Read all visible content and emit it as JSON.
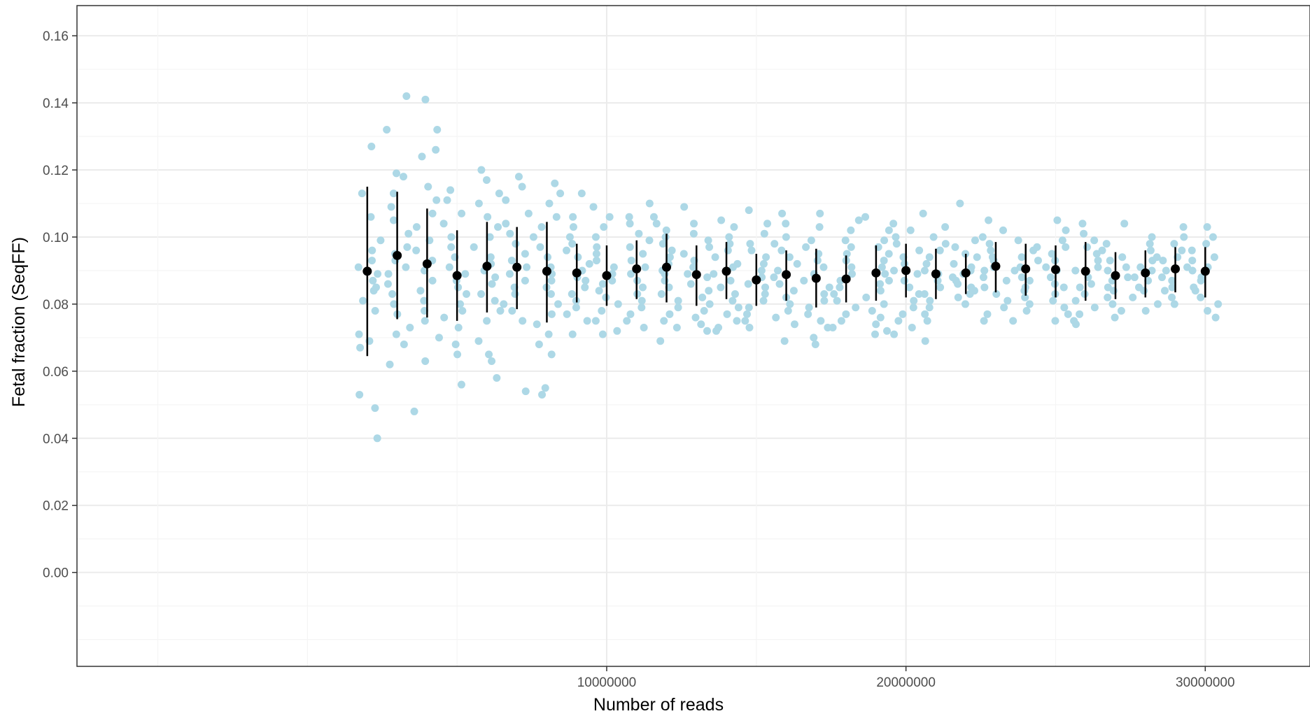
{
  "chart_data": {
    "type": "scatter",
    "title": "",
    "xlabel": "Number of reads",
    "ylabel": "Fetal fraction (SeqFF)",
    "xlim": [
      -7700000,
      33500000
    ],
    "ylim": [
      -0.028,
      0.169
    ],
    "x_ticks": [
      10000000,
      20000000,
      30000000
    ],
    "x_tick_labels": [
      "10000000",
      "20000000",
      "30000000"
    ],
    "y_ticks": [
      0.0,
      0.02,
      0.04,
      0.06,
      0.08,
      0.1,
      0.12,
      0.14,
      0.16
    ],
    "y_tick_labels": [
      "0.00",
      "0.02",
      "0.04",
      "0.06",
      "0.08",
      "0.10",
      "0.12",
      "0.14",
      "0.16"
    ],
    "grid": true,
    "legend": "none",
    "colors": {
      "points": "#add8e6",
      "summary": "#000000",
      "grid_major": "#ebebeb",
      "grid_minor": "#f5f5f5",
      "panel_border": "#333333"
    },
    "series": [
      {
        "type": "jitter-points",
        "x_jitter": 450000,
        "groups": [
          {
            "x": 2000000,
            "ys": [
              0.127,
              0.113,
              0.106,
              0.099,
              0.096,
              0.093,
              0.091,
              0.089,
              0.087,
              0.085,
              0.084,
              0.081,
              0.078,
              0.071,
              0.069,
              0.067,
              0.053,
              0.049,
              0.04
            ]
          },
          {
            "x": 3000000,
            "ys": [
              0.142,
              0.132,
              0.119,
              0.118,
              0.113,
              0.109,
              0.105,
              0.101,
              0.097,
              0.095,
              0.093,
              0.091,
              0.089,
              0.086,
              0.083,
              0.08,
              0.077,
              0.073,
              0.071,
              0.068,
              0.062
            ]
          },
          {
            "x": 4000000,
            "ys": [
              0.141,
              0.132,
              0.126,
              0.124,
              0.115,
              0.111,
              0.107,
              0.103,
              0.099,
              0.096,
              0.093,
              0.09,
              0.087,
              0.084,
              0.081,
              0.078,
              0.075,
              0.07,
              0.063,
              0.048
            ]
          },
          {
            "x": 5000000,
            "ys": [
              0.114,
              0.111,
              0.107,
              0.104,
              0.1,
              0.097,
              0.094,
              0.091,
              0.089,
              0.087,
              0.085,
              0.083,
              0.08,
              0.078,
              0.076,
              0.073,
              0.068,
              0.065,
              0.056
            ]
          },
          {
            "x": 6000000,
            "ys": [
              0.12,
              0.117,
              0.113,
              0.11,
              0.106,
              0.103,
              0.1,
              0.097,
              0.094,
              0.092,
              0.09,
              0.088,
              0.086,
              0.083,
              0.081,
              0.078,
              0.075,
              0.069,
              0.065,
              0.063,
              0.058
            ]
          },
          {
            "x": 7000000,
            "ys": [
              0.118,
              0.115,
              0.111,
              0.107,
              0.104,
              0.101,
              0.098,
              0.095,
              0.093,
              0.091,
              0.089,
              0.087,
              0.085,
              0.083,
              0.08,
              0.078,
              0.075,
              0.054
            ]
          },
          {
            "x": 8000000,
            "ys": [
              0.116,
              0.113,
              0.11,
              0.106,
              0.103,
              0.1,
              0.097,
              0.094,
              0.091,
              0.089,
              0.087,
              0.085,
              0.083,
              0.08,
              0.077,
              0.074,
              0.071,
              0.068,
              0.065,
              0.055,
              0.053
            ]
          },
          {
            "x": 9000000,
            "ys": [
              0.113,
              0.106,
              0.103,
              0.1,
              0.098,
              0.096,
              0.094,
              0.092,
              0.09,
              0.088,
              0.087,
              0.085,
              0.083,
              0.081,
              0.079,
              0.077,
              0.075,
              0.071
            ]
          },
          {
            "x": 10000000,
            "ys": [
              0.109,
              0.106,
              0.103,
              0.1,
              0.097,
              0.095,
              0.093,
              0.091,
              0.089,
              0.087,
              0.086,
              0.084,
              0.082,
              0.08,
              0.078,
              0.075,
              0.072,
              0.071
            ]
          },
          {
            "x": 11000000,
            "ys": [
              0.11,
              0.106,
              0.104,
              0.101,
              0.099,
              0.097,
              0.095,
              0.093,
              0.091,
              0.089,
              0.087,
              0.085,
              0.083,
              0.081,
              0.079,
              0.077,
              0.075,
              0.073
            ]
          },
          {
            "x": 12000000,
            "ys": [
              0.106,
              0.104,
              0.102,
              0.1,
              0.098,
              0.096,
              0.094,
              0.092,
              0.09,
              0.089,
              0.087,
              0.085,
              0.083,
              0.081,
              0.079,
              0.077,
              0.075,
              0.073,
              0.069
            ]
          },
          {
            "x": 13000000,
            "ys": [
              0.109,
              0.104,
              0.101,
              0.099,
              0.097,
              0.095,
              0.093,
              0.091,
              0.089,
              0.088,
              0.086,
              0.084,
              0.082,
              0.08,
              0.078,
              0.076,
              0.074,
              0.072
            ]
          },
          {
            "x": 14000000,
            "ys": [
              0.105,
              0.103,
              0.1,
              0.098,
              0.096,
              0.094,
              0.092,
              0.091,
              0.089,
              0.087,
              0.085,
              0.083,
              0.081,
              0.079,
              0.077,
              0.075,
              0.073,
              0.072
            ]
          },
          {
            "x": 15000000,
            "ys": [
              0.108,
              0.104,
              0.101,
              0.098,
              0.096,
              0.094,
              0.092,
              0.09,
              0.088,
              0.086,
              0.085,
              0.083,
              0.081,
              0.079,
              0.077,
              0.075,
              0.073
            ]
          },
          {
            "x": 16000000,
            "ys": [
              0.107,
              0.104,
              0.1,
              0.098,
              0.096,
              0.094,
              0.092,
              0.09,
              0.088,
              0.086,
              0.084,
              0.082,
              0.08,
              0.078,
              0.076,
              0.074,
              0.069
            ]
          },
          {
            "x": 17000000,
            "ys": [
              0.107,
              0.103,
              0.099,
              0.097,
              0.095,
              0.093,
              0.091,
              0.089,
              0.087,
              0.085,
              0.083,
              0.081,
              0.079,
              0.077,
              0.075,
              0.073,
              0.07,
              0.068
            ]
          },
          {
            "x": 18000000,
            "ys": [
              0.105,
              0.102,
              0.099,
              0.097,
              0.095,
              0.093,
              0.091,
              0.089,
              0.087,
              0.085,
              0.083,
              0.081,
              0.079,
              0.077,
              0.075,
              0.073
            ]
          },
          {
            "x": 19000000,
            "ys": [
              0.106,
              0.102,
              0.099,
              0.097,
              0.095,
              0.093,
              0.091,
              0.089,
              0.087,
              0.086,
              0.084,
              0.082,
              0.08,
              0.078,
              0.076,
              0.074,
              0.072,
              0.071
            ]
          },
          {
            "x": 20000000,
            "ys": [
              0.104,
              0.102,
              0.1,
              0.098,
              0.096,
              0.094,
              0.092,
              0.09,
              0.089,
              0.087,
              0.085,
              0.083,
              0.081,
              0.079,
              0.077,
              0.075,
              0.073,
              0.071
            ]
          },
          {
            "x": 21000000,
            "ys": [
              0.107,
              0.103,
              0.1,
              0.098,
              0.096,
              0.094,
              0.092,
              0.09,
              0.089,
              0.087,
              0.085,
              0.083,
              0.081,
              0.079,
              0.077,
              0.075,
              0.069
            ]
          },
          {
            "x": 22000000,
            "ys": [
              0.11,
              0.099,
              0.097,
              0.095,
              0.094,
              0.092,
              0.091,
              0.09,
              0.089,
              0.088,
              0.087,
              0.086,
              0.085,
              0.084,
              0.083,
              0.082,
              0.08
            ]
          },
          {
            "x": 23000000,
            "ys": [
              0.105,
              0.102,
              0.1,
              0.098,
              0.096,
              0.094,
              0.093,
              0.091,
              0.09,
              0.088,
              0.087,
              0.085,
              0.083,
              0.081,
              0.079,
              0.077,
              0.075
            ]
          },
          {
            "x": 24000000,
            "ys": [
              0.099,
              0.097,
              0.096,
              0.094,
              0.093,
              0.091,
              0.09,
              0.088,
              0.087,
              0.085,
              0.084,
              0.082,
              0.08,
              0.078,
              0.075
            ]
          },
          {
            "x": 25000000,
            "ys": [
              0.105,
              0.102,
              0.099,
              0.097,
              0.095,
              0.093,
              0.091,
              0.09,
              0.088,
              0.086,
              0.085,
              0.083,
              0.081,
              0.079,
              0.077,
              0.075
            ]
          },
          {
            "x": 26000000,
            "ys": [
              0.104,
              0.101,
              0.099,
              0.097,
              0.095,
              0.093,
              0.091,
              0.09,
              0.088,
              0.086,
              0.085,
              0.083,
              0.081,
              0.079,
              0.077,
              0.075,
              0.074
            ]
          },
          {
            "x": 27000000,
            "ys": [
              0.104,
              0.098,
              0.096,
              0.094,
              0.093,
              0.091,
              0.09,
              0.088,
              0.087,
              0.085,
              0.084,
              0.082,
              0.08,
              0.078,
              0.076
            ]
          },
          {
            "x": 28000000,
            "ys": [
              0.1,
              0.098,
              0.096,
              0.094,
              0.093,
              0.091,
              0.09,
              0.088,
              0.087,
              0.085,
              0.084,
              0.082,
              0.08,
              0.078
            ]
          },
          {
            "x": 29000000,
            "ys": [
              0.103,
              0.1,
              0.098,
              0.096,
              0.094,
              0.093,
              0.091,
              0.09,
              0.088,
              0.087,
              0.085,
              0.084,
              0.082,
              0.08
            ]
          },
          {
            "x": 30000000,
            "ys": [
              0.103,
              0.1,
              0.098,
              0.096,
              0.094,
              0.093,
              0.091,
              0.09,
              0.088,
              0.087,
              0.085,
              0.084,
              0.082,
              0.08,
              0.078,
              0.076
            ]
          }
        ]
      },
      {
        "type": "pointrange",
        "x": [
          2000000,
          3000000,
          4000000,
          5000000,
          6000000,
          7000000,
          8000000,
          9000000,
          10000000,
          11000000,
          12000000,
          13000000,
          14000000,
          15000000,
          16000000,
          17000000,
          18000000,
          19000000,
          20000000,
          21000000,
          22000000,
          23000000,
          24000000,
          25000000,
          26000000,
          27000000,
          28000000,
          29000000,
          30000000
        ],
        "y": [
          0.0898,
          0.0945,
          0.092,
          0.0885,
          0.0913,
          0.091,
          0.0898,
          0.0893,
          0.0885,
          0.0905,
          0.091,
          0.0888,
          0.0898,
          0.0872,
          0.0888,
          0.0877,
          0.0875,
          0.0893,
          0.09,
          0.089,
          0.0893,
          0.0913,
          0.0905,
          0.0903,
          0.0898,
          0.0885,
          0.0893,
          0.0905,
          0.0898
        ],
        "ymin": [
          0.0645,
          0.0755,
          0.076,
          0.075,
          0.0775,
          0.0785,
          0.0745,
          0.0805,
          0.0795,
          0.0815,
          0.0805,
          0.0795,
          0.0815,
          0.0795,
          0.081,
          0.079,
          0.0805,
          0.081,
          0.082,
          0.0815,
          0.083,
          0.0835,
          0.0825,
          0.082,
          0.081,
          0.0815,
          0.082,
          0.0835,
          0.082
        ],
        "ymax": [
          0.115,
          0.1135,
          0.1085,
          0.102,
          0.1045,
          0.103,
          0.1045,
          0.098,
          0.0975,
          0.099,
          0.101,
          0.0975,
          0.0985,
          0.095,
          0.096,
          0.0965,
          0.0945,
          0.0975,
          0.098,
          0.0965,
          0.095,
          0.0985,
          0.098,
          0.0975,
          0.0985,
          0.0955,
          0.096,
          0.097,
          0.097
        ]
      }
    ]
  }
}
